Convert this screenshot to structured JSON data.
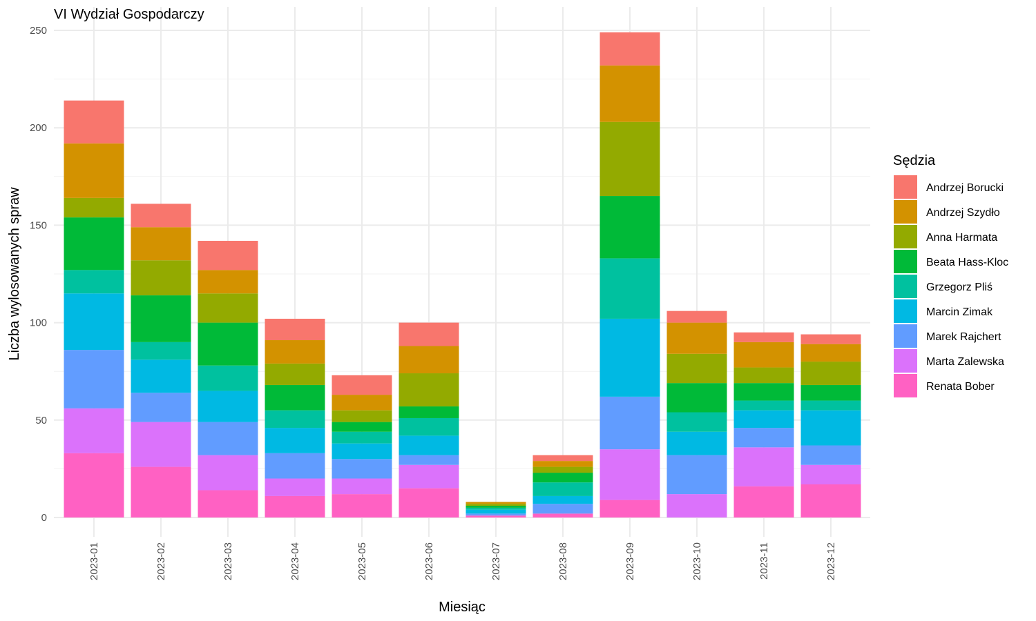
{
  "chart_data": {
    "type": "bar",
    "stacked": true,
    "title": "VI Wydział Gospodarczy",
    "xlabel": "Miesiąc",
    "ylabel": "Liczba wylosowanych spraw",
    "ylim": [
      0,
      250
    ],
    "yticks": [
      0,
      50,
      100,
      150,
      200,
      250
    ],
    "grid": true,
    "legend_position": "right",
    "legend_title": "Sędzia",
    "categories": [
      "2023-01",
      "2023-02",
      "2023-03",
      "2023-04",
      "2023-05",
      "2023-06",
      "2023-07",
      "2023-08",
      "2023-09",
      "2023-10",
      "2023-11",
      "2023-12"
    ],
    "series": [
      {
        "name": "Andrzej Borucki",
        "color": "#F8766D",
        "values": [
          22,
          12,
          15,
          11,
          10,
          12,
          0,
          3,
          17,
          6,
          5,
          5
        ]
      },
      {
        "name": "Andrzej Szydło",
        "color": "#D39200",
        "values": [
          28,
          17,
          12,
          12,
          8,
          14,
          1,
          3,
          29,
          16,
          13,
          9
        ]
      },
      {
        "name": "Anna Harmata",
        "color": "#93AA00",
        "values": [
          10,
          18,
          15,
          11,
          6,
          17,
          1,
          3,
          38,
          15,
          8,
          12
        ]
      },
      {
        "name": "Beata Hass-Kloc",
        "color": "#00BA38",
        "values": [
          27,
          24,
          22,
          13,
          5,
          6,
          1,
          5,
          32,
          15,
          9,
          8
        ]
      },
      {
        "name": "Grzegorz Pliś",
        "color": "#00C19F",
        "values": [
          12,
          9,
          13,
          9,
          6,
          9,
          1,
          7,
          31,
          10,
          5,
          5
        ]
      },
      {
        "name": "Marcin Zimak",
        "color": "#00B9E3",
        "values": [
          29,
          17,
          16,
          13,
          8,
          10,
          2,
          4,
          40,
          12,
          9,
          18
        ]
      },
      {
        "name": "Marek Rajchert",
        "color": "#619CFF",
        "values": [
          30,
          15,
          17,
          13,
          10,
          5,
          1,
          5,
          27,
          20,
          10,
          10
        ]
      },
      {
        "name": "Marta Zalewska",
        "color": "#DB72FB",
        "values": [
          23,
          23,
          18,
          9,
          8,
          12,
          0,
          0,
          26,
          12,
          20,
          10
        ]
      },
      {
        "name": "Renata Bober",
        "color": "#FF61C3",
        "values": [
          33,
          26,
          14,
          11,
          12,
          15,
          1,
          2,
          9,
          0,
          16,
          17
        ]
      }
    ]
  }
}
